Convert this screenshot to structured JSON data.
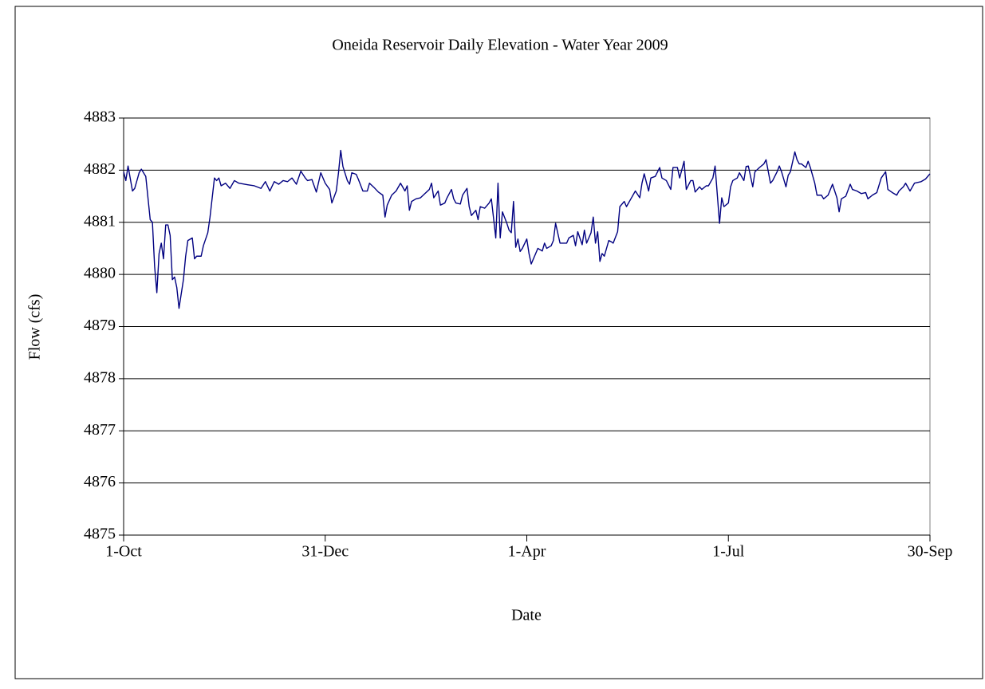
{
  "chart_data": {
    "type": "line",
    "title": "Oneida Reservoir Daily Elevation - Water Year 2009",
    "x_label": "Date",
    "y_label": "Flow (cfs)",
    "color": "#000080",
    "grid": true,
    "xlim": [
      0,
      364
    ],
    "xticks": [
      {
        "value": 0,
        "label": "1-Oct"
      },
      {
        "value": 91,
        "label": "31-Dec"
      },
      {
        "value": 182,
        "label": "1-Apr"
      },
      {
        "value": 273,
        "label": "1-Jul"
      },
      {
        "value": 364,
        "label": "30-Sep"
      }
    ],
    "ylim": [
      4875,
      4883
    ],
    "yticks": [
      4875,
      4876,
      4877,
      4878,
      4879,
      4880,
      4881,
      4882,
      4883
    ],
    "x": [
      0,
      1,
      2,
      4,
      5,
      7,
      8,
      10,
      12,
      13,
      14,
      15,
      16,
      17,
      18,
      19,
      20,
      21,
      22,
      23,
      24,
      25,
      27,
      28,
      29,
      31,
      32,
      33,
      35,
      36,
      38,
      39,
      41,
      42,
      43,
      44,
      46,
      48,
      50,
      52,
      56,
      59,
      62,
      64,
      66,
      68,
      70,
      72,
      74,
      76,
      78,
      80,
      82,
      83,
      85,
      87,
      89,
      91,
      93,
      94,
      96,
      97,
      98,
      99,
      101,
      102,
      103,
      105,
      106,
      108,
      110,
      111,
      113,
      115,
      117,
      118,
      119,
      121,
      123,
      125,
      127,
      128,
      129,
      130,
      132,
      134,
      136,
      138,
      139,
      140,
      142,
      143,
      145,
      146,
      148,
      149,
      150,
      152,
      153,
      155,
      156,
      157,
      159,
      160,
      161,
      163,
      165,
      166,
      168,
      169,
      170,
      171,
      173,
      174,
      175,
      176,
      177,
      178,
      179,
      180,
      182,
      183,
      184,
      186,
      187,
      189,
      190,
      191,
      193,
      194,
      195,
      197,
      200,
      201,
      203,
      204,
      205,
      207,
      208,
      209,
      211,
      212,
      213,
      214,
      215,
      216,
      217,
      219,
      220,
      221,
      223,
      224,
      226,
      227,
      229,
      231,
      233,
      234,
      235,
      237,
      238,
      240,
      242,
      243,
      245,
      247,
      248,
      250,
      251,
      253,
      254,
      256,
      257,
      258,
      260,
      261,
      263,
      264,
      266,
      267,
      269,
      270,
      271,
      273,
      274,
      275,
      277,
      278,
      280,
      281,
      282,
      284,
      285,
      287,
      289,
      290,
      292,
      293,
      295,
      296,
      297,
      299,
      300,
      301,
      303,
      304,
      305,
      306,
      308,
      309,
      310,
      312,
      313,
      315,
      316,
      318,
      320,
      322,
      323,
      324,
      326,
      328,
      329,
      331,
      333,
      335,
      336,
      338,
      340,
      342,
      344,
      345,
      347,
      349,
      350,
      352,
      353,
      355,
      357,
      360,
      362,
      364
    ],
    "values": [
      4881.97,
      4881.8,
      4882.08,
      4881.6,
      4881.65,
      4881.95,
      4882.02,
      4881.88,
      4881.05,
      4881.0,
      4880.15,
      4879.65,
      4880.4,
      4880.6,
      4880.3,
      4880.95,
      4880.95,
      4880.75,
      4879.9,
      4879.95,
      4879.75,
      4879.35,
      4879.9,
      4880.35,
      4880.65,
      4880.7,
      4880.3,
      4880.35,
      4880.35,
      4880.55,
      4880.8,
      4881.1,
      4881.85,
      4881.8,
      4881.85,
      4881.7,
      4881.75,
      4881.65,
      4881.8,
      4881.75,
      4881.72,
      4881.7,
      4881.65,
      4881.78,
      4881.6,
      4881.78,
      4881.73,
      4881.8,
      4881.78,
      4881.85,
      4881.73,
      4881.98,
      4881.85,
      4881.8,
      4881.82,
      4881.58,
      4881.95,
      4881.75,
      4881.63,
      4881.37,
      4881.6,
      4881.95,
      4882.38,
      4882.07,
      4881.8,
      4881.73,
      4881.95,
      4881.92,
      4881.82,
      4881.6,
      4881.6,
      4881.75,
      4881.67,
      4881.58,
      4881.52,
      4881.1,
      4881.33,
      4881.52,
      4881.6,
      4881.75,
      4881.6,
      4881.7,
      4881.23,
      4881.4,
      4881.45,
      4881.47,
      4881.55,
      4881.63,
      4881.75,
      4881.47,
      4881.6,
      4881.33,
      4881.37,
      4881.47,
      4881.63,
      4881.45,
      4881.37,
      4881.35,
      4881.52,
      4881.65,
      4881.3,
      4881.13,
      4881.23,
      4881.05,
      4881.3,
      4881.27,
      4881.37,
      4881.45,
      4880.7,
      4881.75,
      4880.7,
      4881.2,
      4880.98,
      4880.85,
      4880.8,
      4881.4,
      4880.52,
      4880.68,
      4880.44,
      4880.5,
      4880.68,
      4880.4,
      4880.2,
      4880.4,
      4880.5,
      4880.45,
      4880.6,
      4880.5,
      4880.55,
      4880.65,
      4880.98,
      4880.6,
      4880.6,
      4880.7,
      4880.75,
      4880.55,
      4880.82,
      4880.57,
      4880.85,
      4880.6,
      4880.8,
      4881.1,
      4880.6,
      4880.82,
      4880.25,
      4880.4,
      4880.35,
      4880.65,
      4880.63,
      4880.6,
      4880.82,
      4881.3,
      4881.4,
      4881.3,
      4881.45,
      4881.6,
      4881.47,
      4881.75,
      4881.93,
      4881.6,
      4881.85,
      4881.88,
      4882.05,
      4881.85,
      4881.8,
      4881.63,
      4882.05,
      4882.05,
      4881.85,
      4882.17,
      4881.63,
      4881.8,
      4881.8,
      4881.58,
      4881.68,
      4881.63,
      4881.7,
      4881.7,
      4881.85,
      4882.08,
      4880.98,
      4881.47,
      4881.3,
      4881.37,
      4881.68,
      4881.8,
      4881.85,
      4881.95,
      4881.8,
      4882.07,
      4882.08,
      4881.68,
      4881.97,
      4882.05,
      4882.12,
      4882.2,
      4881.75,
      4881.8,
      4881.97,
      4882.08,
      4881.97,
      4881.68,
      4881.9,
      4881.97,
      4882.35,
      4882.2,
      4882.12,
      4882.12,
      4882.05,
      4882.17,
      4882.05,
      4881.75,
      4881.52,
      4881.52,
      4881.45,
      4881.52,
      4881.73,
      4881.47,
      4881.2,
      4881.45,
      4881.5,
      4881.73,
      4881.63,
      4881.6,
      4881.55,
      4881.57,
      4881.45,
      4881.52,
      4881.57,
      4881.85,
      4881.97,
      4881.63,
      4881.57,
      4881.52,
      4881.6,
      4881.68,
      4881.75,
      4881.6,
      4881.75,
      4881.78,
      4881.83,
      4881.93
    ]
  }
}
